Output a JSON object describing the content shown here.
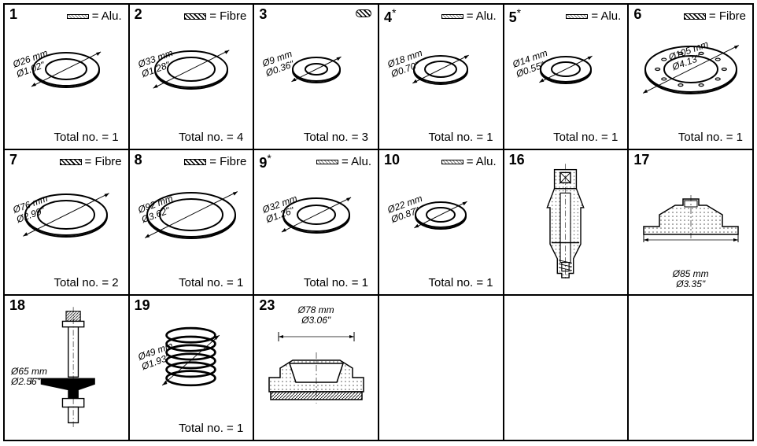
{
  "grid": {
    "cols": 6,
    "rows": 3,
    "cell_border": "#000000",
    "bg": "#ffffff"
  },
  "cells": [
    {
      "num": "1",
      "ast": "",
      "material": "Alu.",
      "mat_style": "alu",
      "type": "washer",
      "dia_mm": "Ø26 mm",
      "dia_in": "Ø1.02\"",
      "total": "1",
      "ring_outer": 42,
      "ring_inner": 26
    },
    {
      "num": "2",
      "ast": "",
      "material": "Fibre",
      "mat_style": "fibre",
      "type": "washer",
      "dia_mm": "Ø33 mm",
      "dia_in": "Ø1.28\"",
      "total": "4",
      "ring_outer": 46,
      "ring_inner": 30
    },
    {
      "num": "3",
      "ast": "",
      "material": "",
      "mat_style": "pill",
      "type": "washer",
      "dia_mm": "Ø9 mm",
      "dia_in": "Ø0.36\"",
      "total": "3",
      "ring_outer": 30,
      "ring_inner": 14
    },
    {
      "num": "4",
      "ast": "*",
      "material": "Alu.",
      "mat_style": "alu",
      "type": "washer",
      "dia_mm": "Ø18 mm",
      "dia_in": "Ø0.70\"",
      "total": "1",
      "ring_outer": 34,
      "ring_inner": 20
    },
    {
      "num": "5",
      "ast": "*",
      "material": "Alu.",
      "mat_style": "alu",
      "type": "washer",
      "dia_mm": "Ø14 mm",
      "dia_in": "Ø0.55\"",
      "total": "1",
      "ring_outer": 32,
      "ring_inner": 18
    },
    {
      "num": "6",
      "ast": "",
      "material": "Fibre",
      "mat_style": "fibre",
      "type": "flange",
      "dia_mm": "Ø105 mm",
      "dia_in": "Ø4.13\"",
      "total": "1",
      "ring_outer": 58,
      "ring_inner": 34,
      "holes": 10
    },
    {
      "num": "7",
      "ast": "",
      "material": "Fibre",
      "mat_style": "fibre",
      "type": "washer",
      "dia_mm": "Ø76 mm",
      "dia_in": "Ø2.99\"",
      "total": "2",
      "ring_outer": 52,
      "ring_inner": 36
    },
    {
      "num": "8",
      "ast": "",
      "material": "Fibre",
      "mat_style": "fibre",
      "type": "washer",
      "dia_mm": "Ø92 mm",
      "dia_in": "Ø3.62\"",
      "total": "1",
      "ring_outer": 56,
      "ring_inner": 40
    },
    {
      "num": "9",
      "ast": "*",
      "material": "Alu.",
      "mat_style": "alu",
      "type": "washer",
      "dia_mm": "Ø32 mm",
      "dia_in": "Ø1.26\"",
      "total": "1",
      "ring_outer": 42,
      "ring_inner": 24
    },
    {
      "num": "10",
      "ast": "",
      "material": "Alu.",
      "mat_style": "alu",
      "type": "washer",
      "dia_mm": "Ø22 mm",
      "dia_in": "Ø0.87\"",
      "total": "1",
      "ring_outer": 32,
      "ring_inner": 18
    },
    {
      "num": "16",
      "ast": "",
      "material": "",
      "mat_style": "",
      "type": "part16"
    },
    {
      "num": "17",
      "ast": "",
      "material": "",
      "mat_style": "",
      "type": "part17",
      "dia_mm": "Ø85 mm",
      "dia_in": "Ø3.35\""
    },
    {
      "num": "18",
      "ast": "",
      "material": "",
      "mat_style": "",
      "type": "part18",
      "dia_mm": "Ø65 mm",
      "dia_in": "Ø2.56\""
    },
    {
      "num": "19",
      "ast": "",
      "material": "",
      "mat_style": "",
      "type": "spring",
      "dia_mm": "Ø49 mm",
      "dia_in": "Ø1.93\"",
      "total": "1"
    },
    {
      "num": "23",
      "ast": "",
      "material": "",
      "mat_style": "",
      "type": "part23",
      "dia_mm": "Ø78 mm",
      "dia_in": "Ø3.06\""
    },
    {
      "empty": true
    },
    {
      "empty": true
    },
    {
      "empty": true
    }
  ],
  "labels": {
    "total_prefix": "Total no. = ",
    "material_eq": " = "
  }
}
